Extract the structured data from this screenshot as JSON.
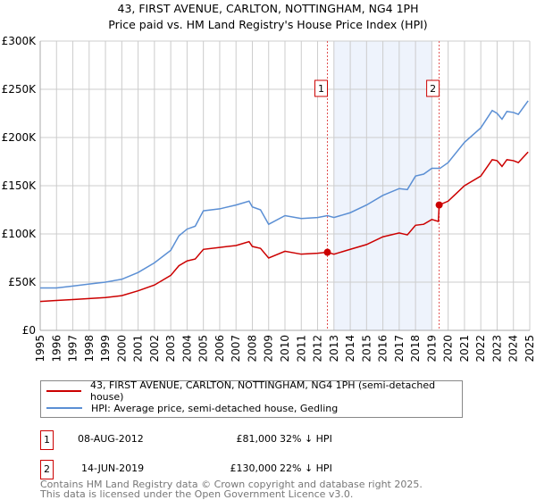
{
  "chart_data": {
    "type": "line",
    "title": "43, FIRST AVENUE, CARLTON, NOTTINGHAM, NG4 1PH",
    "subtitle": "Price paid vs. HM Land Registry's House Price Index (HPI)",
    "xlim": [
      1995,
      2025
    ],
    "ylim": [
      0,
      300000
    ],
    "y_ticks": [
      {
        "v": 0,
        "label": "£0"
      },
      {
        "v": 50000,
        "label": "£50K"
      },
      {
        "v": 100000,
        "label": "£100K"
      },
      {
        "v": 150000,
        "label": "£150K"
      },
      {
        "v": 200000,
        "label": "£200K"
      },
      {
        "v": 250000,
        "label": "£250K"
      },
      {
        "v": 300000,
        "label": "£300K"
      }
    ],
    "x_ticks": [
      "1995",
      "1996",
      "1997",
      "1998",
      "1999",
      "2000",
      "2001",
      "2002",
      "2003",
      "2004",
      "2005",
      "2006",
      "2007",
      "2008",
      "2009",
      "2010",
      "2011",
      "2012",
      "2013",
      "2014",
      "2015",
      "2016",
      "2017",
      "2018",
      "2019",
      "2020",
      "2021",
      "2022",
      "2023",
      "2024",
      "2025"
    ],
    "grid": true,
    "shaded_range": [
      2013,
      2019
    ],
    "series": [
      {
        "name": "43, FIRST AVENUE, CARLTON, NOTTINGHAM, NG4 1PH (semi-detached house)",
        "color": "#cc0000",
        "x": [
          1995,
          1996,
          1997,
          1998,
          1999,
          2000,
          2001,
          2002,
          2003,
          2003.5,
          2004,
          2004.5,
          2005,
          2006,
          2007,
          2007.8,
          2008,
          2008.5,
          2009,
          2010,
          2011,
          2012,
          2012.6,
          2013,
          2014,
          2015,
          2016,
          2017,
          2017.5,
          2018,
          2018.5,
          2019,
          2019.4,
          2019.45,
          2020,
          2021,
          2022,
          2022.7,
          2023,
          2023.3,
          2023.6,
          2024,
          2024.3,
          2024.9
        ],
        "y": [
          30000,
          31000,
          32000,
          33000,
          34000,
          36000,
          41000,
          47000,
          57000,
          67000,
          72000,
          74000,
          84000,
          86000,
          88000,
          92000,
          87000,
          85000,
          75000,
          82000,
          79000,
          80000,
          81000,
          79000,
          84000,
          89000,
          97000,
          101000,
          99000,
          109000,
          110000,
          115000,
          113000,
          130000,
          134000,
          150000,
          160000,
          177000,
          176000,
          170000,
          177000,
          176000,
          174000,
          185000
        ]
      },
      {
        "name": "HPI: Average price, semi-detached house, Gedling",
        "color": "#5b8fd4",
        "x": [
          1995,
          1996,
          1997,
          1998,
          1999,
          2000,
          2001,
          2002,
          2003,
          2003.5,
          2004,
          2004.5,
          2005,
          2006,
          2007,
          2007.8,
          2008,
          2008.5,
          2009,
          2010,
          2011,
          2012,
          2012.6,
          2013,
          2014,
          2015,
          2016,
          2017,
          2017.5,
          2018,
          2018.5,
          2019,
          2019.5,
          2020,
          2021,
          2022,
          2022.7,
          2023,
          2023.3,
          2023.6,
          2024,
          2024.3,
          2024.9
        ],
        "y": [
          44000,
          44000,
          46000,
          48000,
          50000,
          53000,
          60000,
          70000,
          83000,
          98000,
          105000,
          108000,
          124000,
          126000,
          130000,
          134000,
          128000,
          125000,
          110000,
          119000,
          116000,
          117000,
          119000,
          117000,
          122000,
          130000,
          140000,
          147000,
          146000,
          160000,
          162000,
          168000,
          168000,
          174000,
          195000,
          210000,
          228000,
          225000,
          219000,
          227000,
          226000,
          224000,
          238000
        ]
      }
    ],
    "annotations": [
      {
        "label": "1",
        "x": 2012.6,
        "y": 81000
      },
      {
        "label": "2",
        "x": 2019.45,
        "y": 130000
      }
    ]
  },
  "legend": {
    "items": [
      "43, FIRST AVENUE, CARLTON, NOTTINGHAM, NG4 1PH (semi-detached house)",
      "HPI: Average price, semi-detached house, Gedling"
    ]
  },
  "transactions": [
    {
      "num": "1",
      "date": "08-AUG-2012",
      "price": "£81,000",
      "hpi": "32% ↓ HPI"
    },
    {
      "num": "2",
      "date": "14-JUN-2019",
      "price": "£130,000",
      "hpi": "22% ↓ HPI"
    }
  ],
  "footer": {
    "line1": "Contains HM Land Registry data © Crown copyright and database right 2025.",
    "line2": "This data is licensed under the Open Government Licence v3.0."
  }
}
